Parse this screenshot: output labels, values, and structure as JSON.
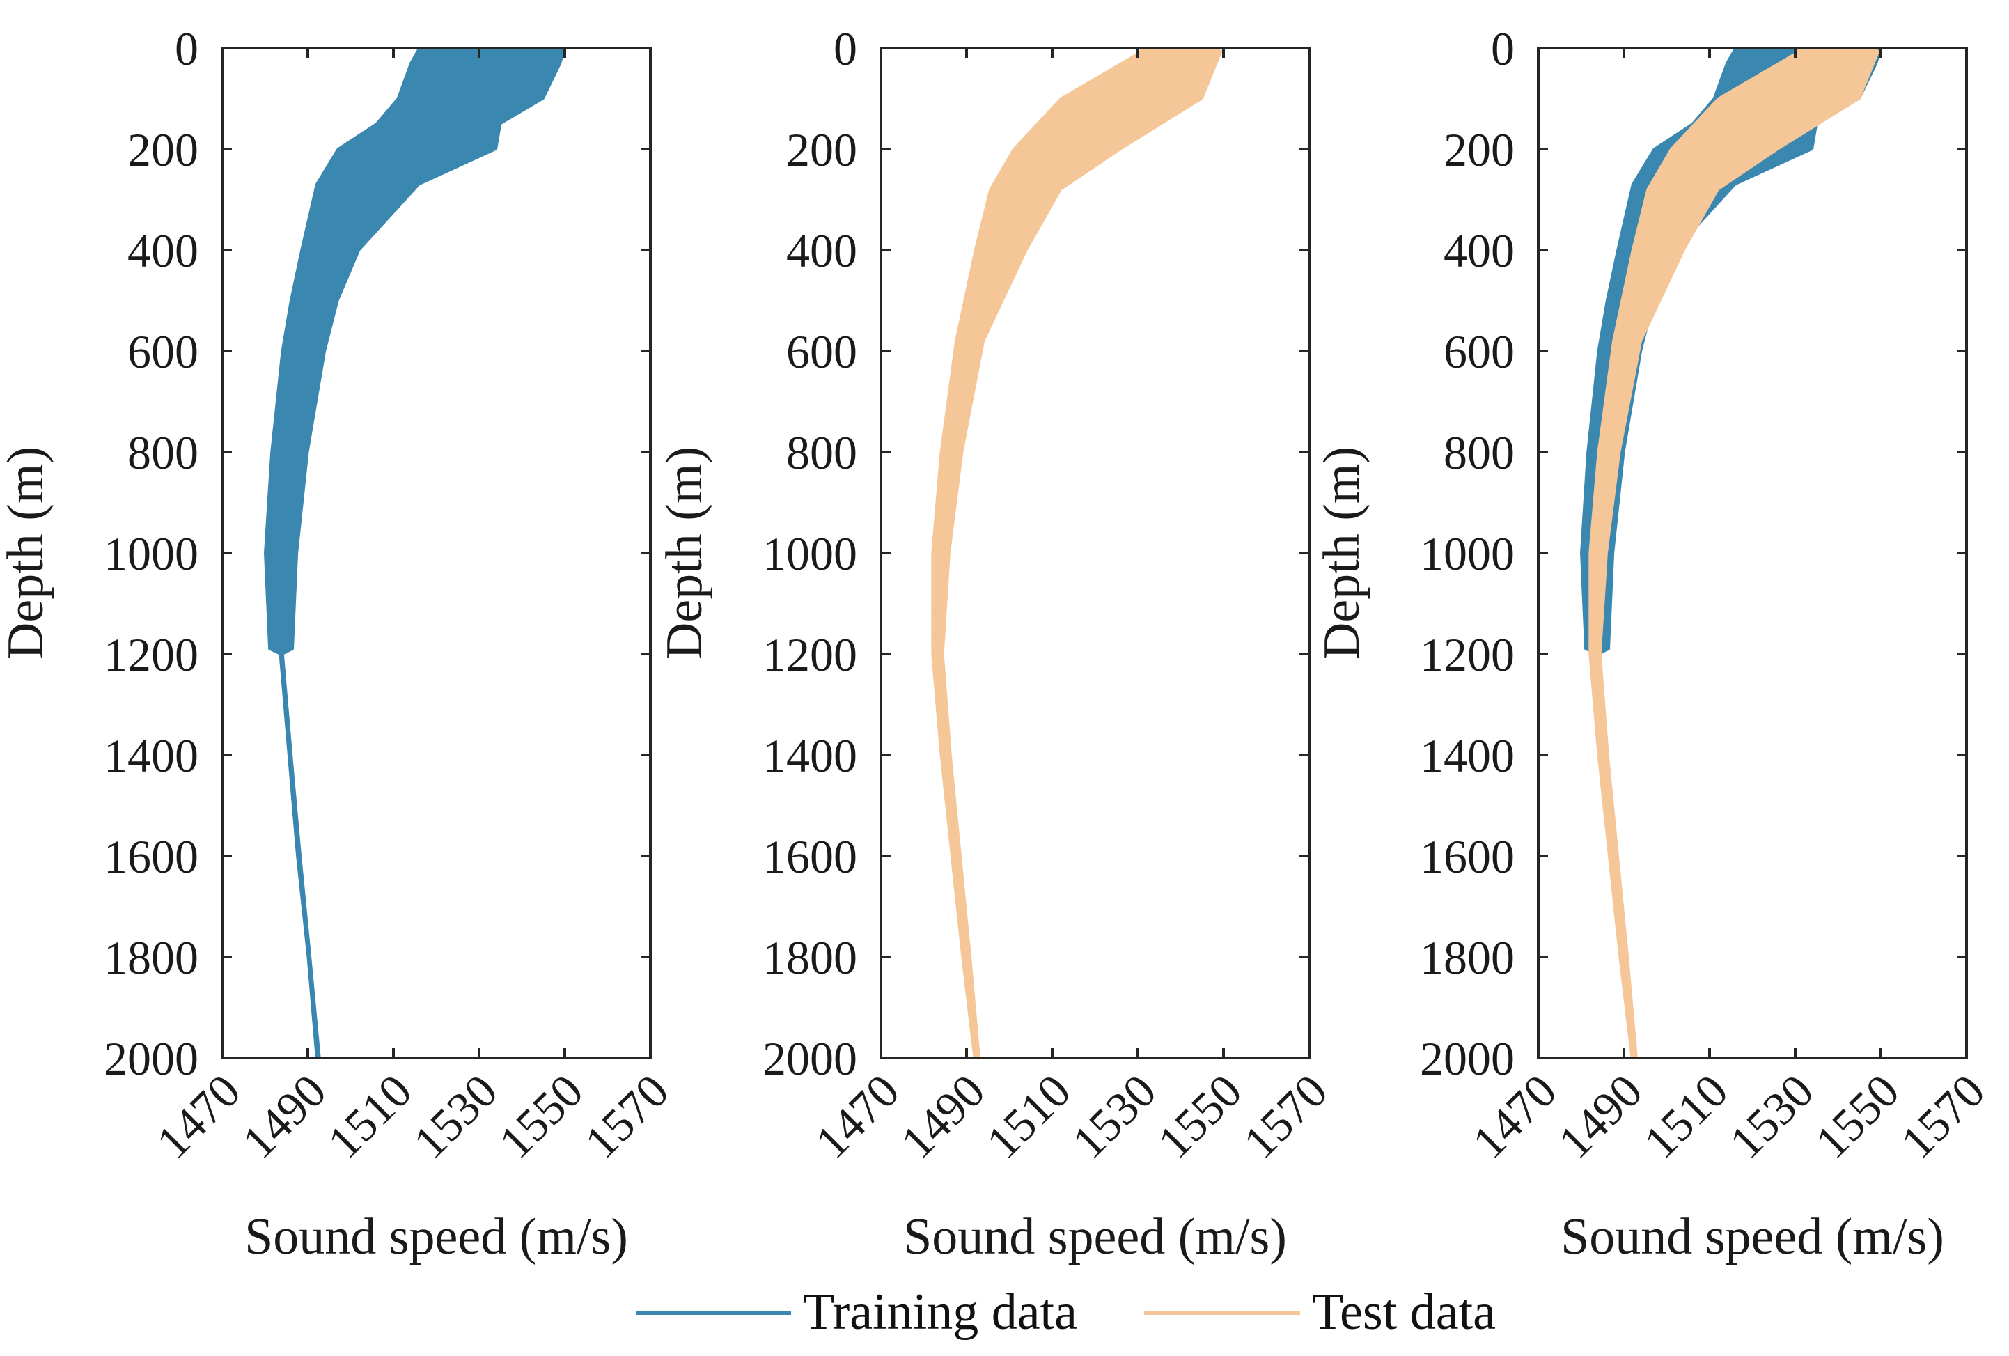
{
  "chart_data": [
    {
      "type": "line",
      "panel": "left",
      "xlabel": "Sound speed (m/s)",
      "ylabel": "Depth (m)",
      "xlim": [
        1470,
        1570
      ],
      "ylim": [
        0,
        2000
      ],
      "y_reversed": true,
      "xticks": [
        1470,
        1490,
        1510,
        1530,
        1550,
        1570
      ],
      "yticks": [
        0,
        200,
        400,
        600,
        800,
        1000,
        1200,
        1400,
        1600,
        1800,
        2000
      ],
      "grid": false,
      "series_shown": [
        "training"
      ]
    },
    {
      "type": "line",
      "panel": "middle",
      "xlabel": "Sound speed (m/s)",
      "ylabel": "Depth (m)",
      "xlim": [
        1470,
        1570
      ],
      "ylim": [
        0,
        2000
      ],
      "y_reversed": true,
      "xticks": [
        1470,
        1490,
        1510,
        1530,
        1550,
        1570
      ],
      "yticks": [
        0,
        200,
        400,
        600,
        800,
        1000,
        1200,
        1400,
        1600,
        1800,
        2000
      ],
      "grid": false,
      "series_shown": [
        "test"
      ]
    },
    {
      "type": "line",
      "panel": "right",
      "xlabel": "Sound speed (m/s)",
      "ylabel": "Depth (m)",
      "xlim": [
        1470,
        1570
      ],
      "ylim": [
        0,
        2000
      ],
      "y_reversed": true,
      "xticks": [
        1470,
        1490,
        1510,
        1530,
        1550,
        1570
      ],
      "yticks": [
        0,
        200,
        400,
        600,
        800,
        1000,
        1200,
        1400,
        1600,
        1800,
        2000
      ],
      "grid": false,
      "series_shown": [
        "training",
        "test"
      ]
    }
  ],
  "series": {
    "training": {
      "name": "Training data",
      "color": "#3a87b0",
      "envelope": {
        "depth": [
          0,
          30,
          100,
          150,
          200,
          270,
          400,
          500,
          600,
          800,
          1000,
          1190,
          1200,
          1400,
          1600,
          1800,
          2000
        ],
        "speed_min": [
          1516,
          1514,
          1511,
          1506,
          1497,
          1492,
          1488.5,
          1486,
          1484,
          1481.5,
          1480,
          1481,
          1483.5,
          1485.5,
          1487.5,
          1490,
          1492
        ],
        "speed_max": [
          1550,
          1549,
          1545,
          1535,
          1534,
          1516,
          1502,
          1497,
          1494,
          1490,
          1487.5,
          1486.5,
          1484.2,
          1486.2,
          1488.3,
          1490.6,
          1492.8
        ]
      }
    },
    "test": {
      "name": "Test data",
      "color": "#f5c697",
      "envelope": {
        "depth": [
          0,
          6,
          100,
          200,
          280,
          400,
          580,
          800,
          1000,
          1200,
          1400,
          1600,
          1800,
          2000
        ],
        "speed_min": [
          1531,
          1531,
          1512,
          1501,
          1495.5,
          1492,
          1487.5,
          1484,
          1482,
          1482,
          1484,
          1486.5,
          1489,
          1491.8
        ],
        "speed_max": [
          1547,
          1549.5,
          1545,
          1526,
          1512,
          1504,
          1494,
          1489,
          1486,
          1484.5,
          1486.3,
          1488.6,
          1490.9,
          1493
        ]
      }
    }
  },
  "legend": {
    "placement": "bottom-center",
    "items": [
      {
        "label": "Training data",
        "series": "training"
      },
      {
        "label": "Test data",
        "series": "test"
      }
    ]
  }
}
